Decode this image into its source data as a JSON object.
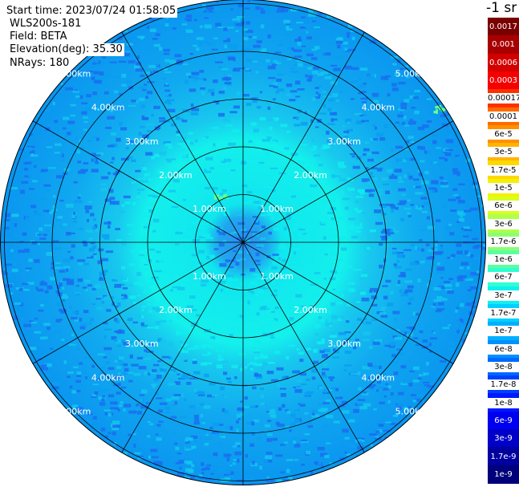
{
  "header": {
    "start_time": "Start time: 2023/07/24 01:58:05",
    "instrument": "WLS200s-181",
    "field": "Field: BETA",
    "elevation": "Elevation(deg): 35.30",
    "nrays": "NRays: 180"
  },
  "colorbar": {
    "unit": "-1 sr",
    "ticks": [
      "0.0017",
      "0.001",
      "0.0006",
      "0.0003",
      "0.00017",
      "0.0001",
      "6e-5",
      "3e-5",
      "1.7e-5",
      "1e-5",
      "6e-6",
      "3e-6",
      "1.7e-6",
      "1e-6",
      "6e-7",
      "3e-7",
      "1.7e-7",
      "1e-7",
      "6e-8",
      "3e-8",
      "1.7e-8",
      "1e-8",
      "6e-9",
      "3e-9",
      "1.7e-9",
      "1e-9"
    ],
    "colors": [
      "#7a0000",
      "#a80000",
      "#d40000",
      "#f40000",
      "#ff3000",
      "#ff6a00",
      "#ff9000",
      "#ffb400",
      "#ffd800",
      "#f2f200",
      "#d8ff20",
      "#b0ff4a",
      "#8cff70",
      "#5cffa0",
      "#30ffd0",
      "#10f0f0",
      "#00d0ff",
      "#00b0ff",
      "#0090ff",
      "#0068ff",
      "#0040ff",
      "#0018ff",
      "#0000f0",
      "#0000c8",
      "#0000a0",
      "#00007a"
    ]
  },
  "plot": {
    "range_unit": "km",
    "ring_labels": [
      "1.00km",
      "2.00km",
      "3.00km",
      "4.00km",
      "5.00km"
    ],
    "field_colors": {
      "inner": "#10ecee",
      "mid": "#14c6ee",
      "outer": "#0a9ef0",
      "dark": "#1a6ff0",
      "speck": "#6aff8a"
    }
  }
}
